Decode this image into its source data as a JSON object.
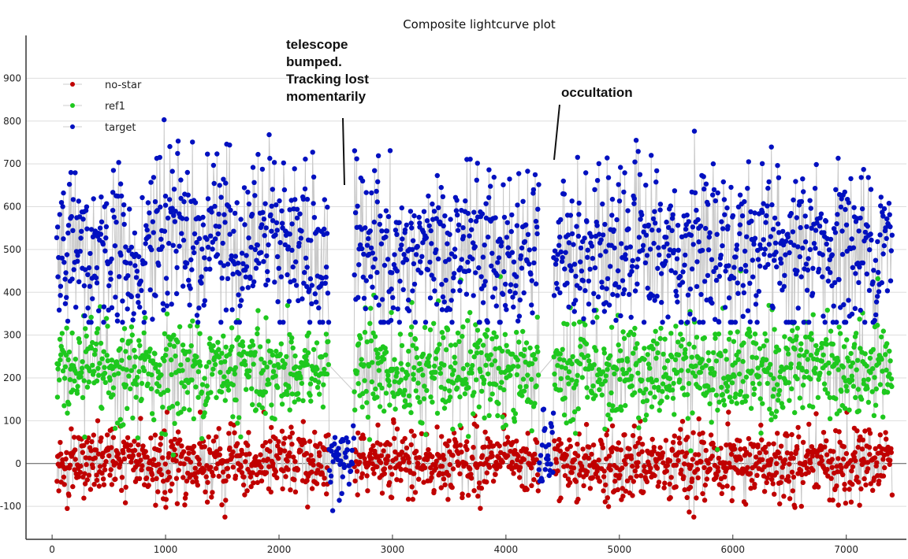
{
  "chart_data": {
    "type": "scatter",
    "title": "Composite lightcurve plot",
    "xlabel": "",
    "ylabel": "",
    "xlim": [
      -230,
      7530
    ],
    "ylim": [
      -177,
      1000
    ],
    "x_ticks": [
      0,
      1000,
      2000,
      3000,
      4000,
      5000,
      6000,
      7000
    ],
    "y_ticks": [
      -100,
      0,
      100,
      200,
      300,
      400,
      500,
      600,
      700,
      800,
      900
    ],
    "grid": true,
    "legend_position": "top-left",
    "x_range": [
      0,
      7400
    ],
    "sample_step": 5,
    "series": [
      {
        "name": "no-star",
        "color": "#c00000",
        "mean": 0,
        "sd": 40,
        "min": -125,
        "max": 120,
        "gaps": [
          [
            2440,
            2660
          ],
          [
            4290,
            4420
          ]
        ]
      },
      {
        "name": "ref1",
        "color": "#1ec81e",
        "mean": 215,
        "sd": 60,
        "min": 20,
        "max": 450,
        "gaps": [
          [
            2440,
            2660
          ],
          [
            4290,
            4420
          ]
        ]
      },
      {
        "name": "target",
        "color": "#0010c0",
        "mean": 500,
        "sd": 95,
        "min": 330,
        "max": 940,
        "dips": [
          {
            "x_range": [
              2440,
              2660
            ],
            "mean": 0,
            "sd": 45
          },
          {
            "x_range": [
              4290,
              4420
            ],
            "mean": 20,
            "sd": 55
          }
        ]
      }
    ],
    "annotations": [
      {
        "text": "telescope bumped. Tracking lost momentarily",
        "x": 2550,
        "y": 650
      },
      {
        "text": "occultation",
        "x": 4370,
        "y": 710
      }
    ]
  }
}
